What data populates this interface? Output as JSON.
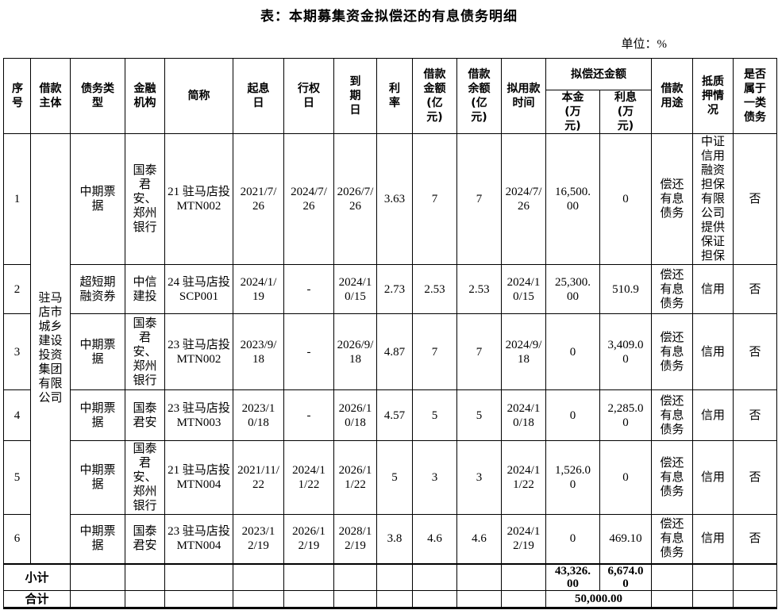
{
  "title": "表：本期募集资金拟偿还的有息债务明细",
  "unit_label": "单位：%",
  "table": {
    "headers": {
      "seq": "序号",
      "borrower": "借款主体",
      "debt_type": "债务类型",
      "institution": "金融机构",
      "short_name": "简称",
      "value_date": "起息日",
      "exercise_date": "行权日",
      "maturity_date": "到期日",
      "rate": "利率",
      "loan_amount": "借款金额(亿元)",
      "loan_balance": "借款余额(亿元)",
      "planned_use_time": "拟用款时间",
      "repay_group": "拟偿还金额",
      "principal": "本金(万元)",
      "interest": "利息(万元)",
      "purpose": "借款用途",
      "collateral": "抵质押情况",
      "is_class_one": "是否属于一类债务"
    },
    "borrower_merged": "驻马店市城乡建设投资集团有限公司",
    "rows": [
      {
        "seq": "1",
        "debt_type": "中期票据",
        "institution": "国泰君安、郑州银行",
        "short_name": "21 驻马店投 MTN002",
        "value_date": "2021/7/26",
        "exercise_date": "2024/7/26",
        "maturity_date": "2026/7/26",
        "rate": "3.63",
        "loan_amount": "7",
        "loan_balance": "7",
        "planned_use_time": "2024/7/26",
        "principal": "16,500.00",
        "interest": "0",
        "purpose": "偿还有息债务",
        "collateral": "中证信用融资担保有限公司提供保证担保",
        "is_class_one": "否"
      },
      {
        "seq": "2",
        "debt_type": "超短期融资券",
        "institution": "中信建投",
        "short_name": "24 驻马店投 SCP001",
        "value_date": "2024/1/19",
        "exercise_date": "-",
        "maturity_date": "2024/10/15",
        "rate": "2.73",
        "loan_amount": "2.53",
        "loan_balance": "2.53",
        "planned_use_time": "2024/10/15",
        "principal": "25,300.00",
        "interest": "510.9",
        "purpose": "偿还有息债务",
        "collateral": "信用",
        "is_class_one": "否"
      },
      {
        "seq": "3",
        "debt_type": "中期票据",
        "institution": "国泰君安、郑州银行",
        "short_name": "23 驻马店投 MTN002",
        "value_date": "2023/9/18",
        "exercise_date": "-",
        "maturity_date": "2026/9/18",
        "rate": "4.87",
        "loan_amount": "7",
        "loan_balance": "7",
        "planned_use_time": "2024/9/18",
        "principal": "0",
        "interest": "3,409.00",
        "purpose": "偿还有息债务",
        "collateral": "信用",
        "is_class_one": "否"
      },
      {
        "seq": "4",
        "debt_type": "中期票据",
        "institution": "国泰君安",
        "short_name": "23 驻马店投 MTN003",
        "value_date": "2023/10/18",
        "exercise_date": "-",
        "maturity_date": "2026/10/18",
        "rate": "4.57",
        "loan_amount": "5",
        "loan_balance": "5",
        "planned_use_time": "2024/10/18",
        "principal": "0",
        "interest": "2,285.00",
        "purpose": "偿还有息债务",
        "collateral": "信用",
        "is_class_one": "否"
      },
      {
        "seq": "5",
        "debt_type": "中期票据",
        "institution": "国泰君安、郑州银行",
        "short_name": "21 驻马店投 MTN004",
        "value_date": "2021/11/22",
        "exercise_date": "2024/11/22",
        "maturity_date": "2026/11/22",
        "rate": "5",
        "loan_amount": "3",
        "loan_balance": "3",
        "planned_use_time": "2024/11/22",
        "principal": "1,526.00",
        "interest": "0",
        "purpose": "偿还有息债务",
        "collateral": "信用",
        "is_class_one": "否"
      },
      {
        "seq": "6",
        "debt_type": "中期票据",
        "institution": "国泰君安",
        "short_name": "23 驻马店投 MTN004",
        "value_date": "2023/12/19",
        "exercise_date": "2026/12/19",
        "maturity_date": "2028/12/19",
        "rate": "3.8",
        "loan_amount": "4.6",
        "loan_balance": "4.6",
        "planned_use_time": "2024/12/19",
        "principal": "0",
        "interest": "469.10",
        "purpose": "偿还有息债务",
        "collateral": "信用",
        "is_class_one": "否"
      }
    ],
    "subtotal": {
      "label": "小计",
      "principal": "43,326.00",
      "interest": "6,674.00"
    },
    "total": {
      "label": "合计",
      "amount": "50,000.00"
    }
  }
}
